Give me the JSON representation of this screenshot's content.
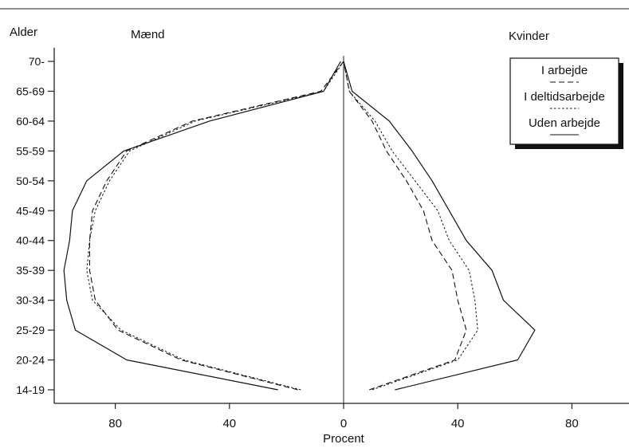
{
  "chart_data": {
    "type": "line",
    "title": "",
    "xlabel": "Procent",
    "ylabel": "Alder",
    "left_label": "Mænd",
    "right_label": "Kvinder",
    "xlim": [
      -100,
      100
    ],
    "x_ticks": [
      {
        "value": -80,
        "label": "80"
      },
      {
        "value": -40,
        "label": "40"
      },
      {
        "value": 0,
        "label": "0"
      },
      {
        "value": 40,
        "label": "40"
      },
      {
        "value": 80,
        "label": "80"
      }
    ],
    "categories": [
      "14-19",
      "20-24",
      "25-29",
      "30-34",
      "35-39",
      "40-44",
      "45-49",
      "50-54",
      "55-59",
      "60-64",
      "65-69",
      "70-"
    ],
    "legend_position": "top-right",
    "series": [
      {
        "name": "I arbejde",
        "style": "dashed",
        "men": [
          16,
          57,
          79,
          87,
          89,
          89,
          88,
          83,
          76,
          53,
          8,
          0
        ],
        "women": [
          9,
          39,
          43,
          40,
          38,
          31,
          28,
          22,
          15,
          10,
          2,
          0
        ]
      },
      {
        "name": "I deltidsarbejde",
        "style": "dotted",
        "men": [
          15,
          56,
          78,
          88,
          90,
          89,
          87,
          82,
          75,
          52,
          7,
          0
        ],
        "women": [
          10,
          40,
          47,
          46,
          44,
          37,
          33,
          25,
          17,
          11,
          2,
          0
        ]
      },
      {
        "name": "Uden arbejde",
        "style": "solid",
        "men": [
          23,
          76,
          94,
          97,
          98,
          96,
          95,
          90,
          77,
          47,
          7,
          1
        ],
        "women": [
          18,
          61,
          67,
          56,
          52,
          43,
          37,
          31,
          24,
          16,
          3,
          0
        ]
      }
    ]
  }
}
